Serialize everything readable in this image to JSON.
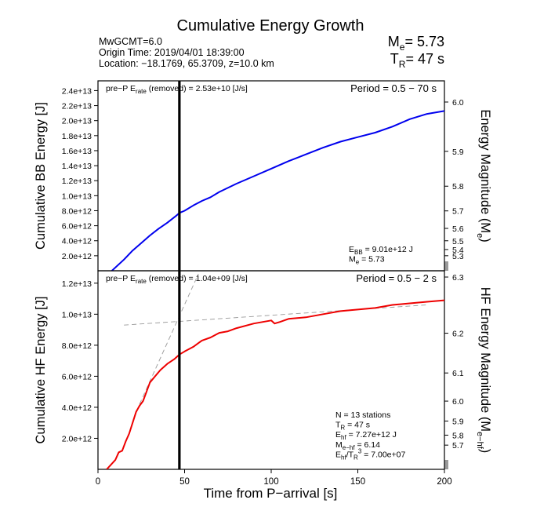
{
  "figure": {
    "title": "Cumulative Energy Growth",
    "event": "MwGCMT=6.0",
    "origin": "Origin Time: 2019/04/01 18:39:00",
    "location": "Location: −18.1769, 65.3709, z=10.0 km",
    "me_prefix": "M",
    "me_sub": "e",
    "me_value": "= 5.73",
    "tr_prefix": "T",
    "tr_sub": "R",
    "tr_value": "= 47 s",
    "xlabel": "Time from P−arrival [s]",
    "x_ticks": [
      "0",
      "50",
      "100",
      "150",
      "200"
    ],
    "p_marker_time": 47
  },
  "chart_data": [
    {
      "type": "line",
      "ylabel": "Cumulative BB Energy [J]",
      "y2label": "Energy Magnitude (M",
      "y2label_sub": "e",
      "y2label_end": ")",
      "xlim": [
        0,
        200
      ],
      "ylim": [
        0,
        25300000000000.0
      ],
      "color": "#0000ee",
      "y_ticks": [
        "2.0e+12",
        "4.0e+12",
        "6.0e+12",
        "8.0e+12",
        "1.0e+13",
        "1.2e+13",
        "1.4e+13",
        "1.6e+13",
        "1.8e+13",
        "2.0e+13",
        "2.2e+13",
        "2.4e+13"
      ],
      "y_tick_values": [
        2000000000000.0,
        4000000000000.0,
        6000000000000.0,
        8000000000000.0,
        10000000000000.0,
        12000000000000.0,
        14000000000000.0,
        16000000000000.0,
        18000000000000.0,
        20000000000000.0,
        22000000000000.0,
        24000000000000.0
      ],
      "mag_ticks": [
        "6.0",
        "5.9",
        "5.8",
        "5.7",
        "5.6",
        "5.5",
        "5.4",
        "5.3"
      ],
      "mag_values": [
        6.0,
        5.9,
        5.8,
        5.7,
        5.6,
        5.5,
        5.4,
        5.3
      ],
      "x": [
        8,
        15,
        20,
        25,
        30,
        35,
        40,
        45,
        47,
        50,
        55,
        60,
        65,
        70,
        80,
        90,
        100,
        110,
        120,
        130,
        140,
        150,
        160,
        170,
        180,
        190,
        200
      ],
      "y": [
        0,
        1500000000000.0,
        2700000000000.0,
        3700000000000.0,
        4700000000000.0,
        5600000000000.0,
        6400000000000.0,
        7300000000000.0,
        7700000000000.0,
        8000000000000.0,
        8700000000000.0,
        9300000000000.0,
        9800000000000.0,
        10500000000000.0,
        11600000000000.0,
        12600000000000.0,
        13600000000000.0,
        14600000000000.0,
        15500000000000.0,
        16400000000000.0,
        17200000000000.0,
        17800000000000.0,
        18400000000000.0,
        19200000000000.0,
        20200000000000.0,
        20900000000000.0,
        21300000000000.0
      ],
      "note_left_prefix": "pre−P E",
      "note_left_sub": "rate",
      "note_left_suffix": " (removed) = 2.53e+10 [J/s]",
      "note_right": "Period = 0.5 − 70 s",
      "stats": [
        {
          "a": "E",
          "sub": "BB",
          "b": " = 9.01e+12 J"
        },
        {
          "a": "M",
          "sub": "e",
          "b": " = 5.73"
        }
      ]
    },
    {
      "type": "line",
      "ylabel": "Cumulative HF Energy [J]",
      "y2label": "HF Energy Magnitude (M",
      "y2label_sub": "e−hf",
      "y2label_end": ")",
      "xlim": [
        0,
        200
      ],
      "ylim": [
        0,
        12800000000000.0
      ],
      "color": "#ee0000",
      "y_ticks": [
        "2.0e+12",
        "4.0e+12",
        "6.0e+12",
        "8.0e+12",
        "1.0e+13",
        "1.2e+13"
      ],
      "y_tick_values": [
        2000000000000.0,
        4000000000000.0,
        6000000000000.0,
        8000000000000.0,
        10000000000000.0,
        12000000000000.0
      ],
      "mag_ticks": [
        "6.3",
        "6.2",
        "6.1",
        "6.0",
        "5.9",
        "5.8",
        "5.7"
      ],
      "mag_values": [
        6.3,
        6.2,
        6.1,
        6.0,
        5.9,
        5.8,
        5.7
      ],
      "x": [
        5,
        10,
        12,
        14,
        16,
        18,
        20,
        22,
        24,
        26,
        28,
        30,
        33,
        36,
        40,
        44,
        47,
        50,
        55,
        60,
        65,
        70,
        75,
        80,
        90,
        100,
        102,
        105,
        110,
        120,
        130,
        140,
        150,
        160,
        170,
        180,
        190,
        200
      ],
      "y": [
        0,
        600000000000.0,
        1100000000000.0,
        1200000000000.0,
        1800000000000.0,
        2300000000000.0,
        3000000000000.0,
        3700000000000.0,
        4100000000000.0,
        4400000000000.0,
        5000000000000.0,
        5600000000000.0,
        6000000000000.0,
        6400000000000.0,
        6800000000000.0,
        7100000000000.0,
        7400000000000.0,
        7600000000000.0,
        7900000000000.0,
        8300000000000.0,
        8500000000000.0,
        8800000000000.0,
        8900000000000.0,
        9100000000000.0,
        9400000000000.0,
        9600000000000.0,
        9400000000000.0,
        9500000000000.0,
        9700000000000.0,
        9800000000000.0,
        10000000000000.0,
        10200000000000.0,
        10300000000000.0,
        10400000000000.0,
        10600000000000.0,
        10700000000000.0,
        10800000000000.0,
        10900000000000.0
      ],
      "dashed_lines": [
        {
          "x": [
            15,
            190
          ],
          "y": [
            9300000000000.0,
            10600000000000.0
          ]
        },
        {
          "x": [
            24,
            58
          ],
          "y": [
            4200000000000.0,
            12600000000000.0
          ]
        }
      ],
      "note_left_prefix": "pre−P E",
      "note_left_sub": "rate",
      "note_left_suffix": " (removed) = 1.04e+09 [J/s]",
      "note_right": "Period = 0.5 − 2 s",
      "stats": [
        {
          "a": "N = 13 stations",
          "sub": "",
          "b": ""
        },
        {
          "a": "T",
          "sub": "R",
          "b": " = 47  s"
        },
        {
          "a": "E",
          "sub": "hf",
          "b": " = 7.27e+12 J"
        },
        {
          "a": "M",
          "sub": "e−hf",
          "b": " = 6.14"
        },
        {
          "a": "E",
          "sub": "hf",
          "b": "/T",
          "sub2": "R",
          "sup": "3",
          "c": " =  7.00e+07"
        }
      ]
    }
  ]
}
